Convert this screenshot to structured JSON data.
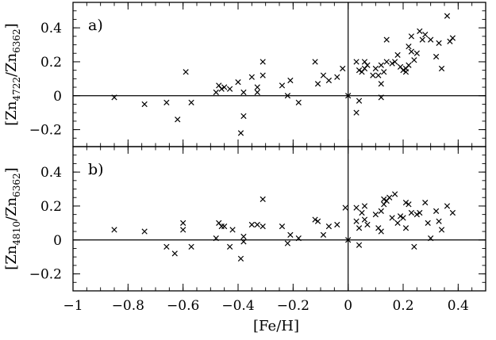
{
  "chart_data": [
    {
      "type": "scatter",
      "panel_label": "a)",
      "title": "",
      "xlabel": "[Fe/H]",
      "ylabel": {
        "pre": "[Zn",
        "sub1": "4722",
        "mid": "/Zn",
        "sub2": "6362",
        "post": "]"
      },
      "xlim": [
        -1.0,
        0.5
      ],
      "ylim": [
        -0.3,
        0.55
      ],
      "xticks": [
        -1,
        -0.8,
        -0.6,
        -0.4,
        -0.2,
        0,
        0.2,
        0.4
      ],
      "xtick_labels": [
        "",
        "",
        "",
        "",
        "",
        "",
        "",
        ""
      ],
      "yticks": [
        -0.2,
        0,
        0.2,
        0.4
      ],
      "ytick_labels": [
        "−0.2",
        "0",
        "0.2",
        "0.4"
      ],
      "marker": "x",
      "reference_lines": {
        "y": 0,
        "x": 0
      },
      "points": [
        [
          -0.85,
          -0.01
        ],
        [
          -0.74,
          -0.05
        ],
        [
          -0.66,
          -0.04
        ],
        [
          -0.62,
          -0.14
        ],
        [
          -0.59,
          0.14
        ],
        [
          -0.57,
          -0.04
        ],
        [
          -0.48,
          0.02
        ],
        [
          -0.47,
          0.06
        ],
        [
          -0.46,
          0.04
        ],
        [
          -0.45,
          0.05
        ],
        [
          -0.43,
          0.04
        ],
        [
          -0.4,
          0.08
        ],
        [
          -0.39,
          -0.22
        ],
        [
          -0.38,
          0.02
        ],
        [
          -0.38,
          -0.12
        ],
        [
          -0.35,
          0.11
        ],
        [
          -0.33,
          0.05
        ],
        [
          -0.33,
          0.02
        ],
        [
          -0.31,
          0.2
        ],
        [
          -0.31,
          0.12
        ],
        [
          -0.24,
          0.06
        ],
        [
          -0.22,
          0.0
        ],
        [
          -0.21,
          0.09
        ],
        [
          -0.18,
          -0.04
        ],
        [
          -0.12,
          0.2
        ],
        [
          -0.11,
          0.07
        ],
        [
          -0.09,
          0.12
        ],
        [
          -0.07,
          0.09
        ],
        [
          -0.04,
          0.11
        ],
        [
          -0.02,
          0.16
        ],
        [
          0.0,
          0.0
        ],
        [
          0.03,
          0.2
        ],
        [
          0.03,
          -0.1
        ],
        [
          0.04,
          0.15
        ],
        [
          0.04,
          -0.03
        ],
        [
          0.05,
          0.14
        ],
        [
          0.06,
          0.2
        ],
        [
          0.06,
          0.16
        ],
        [
          0.07,
          0.18
        ],
        [
          0.09,
          0.12
        ],
        [
          0.1,
          0.16
        ],
        [
          0.11,
          0.12
        ],
        [
          0.12,
          0.18
        ],
        [
          0.12,
          0.07
        ],
        [
          0.12,
          -0.01
        ],
        [
          0.13,
          0.14
        ],
        [
          0.14,
          0.2
        ],
        [
          0.14,
          0.33
        ],
        [
          0.16,
          0.19
        ],
        [
          0.17,
          0.2
        ],
        [
          0.18,
          0.24
        ],
        [
          0.19,
          0.17
        ],
        [
          0.2,
          0.15
        ],
        [
          0.21,
          0.16
        ],
        [
          0.21,
          0.14
        ],
        [
          0.22,
          0.18
        ],
        [
          0.22,
          0.29
        ],
        [
          0.23,
          0.26
        ],
        [
          0.23,
          0.35
        ],
        [
          0.24,
          0.21
        ],
        [
          0.25,
          0.25
        ],
        [
          0.26,
          0.38
        ],
        [
          0.27,
          0.33
        ],
        [
          0.28,
          0.36
        ],
        [
          0.3,
          0.33
        ],
        [
          0.32,
          0.23
        ],
        [
          0.33,
          0.31
        ],
        [
          0.34,
          0.16
        ],
        [
          0.36,
          0.47
        ],
        [
          0.37,
          0.32
        ],
        [
          0.38,
          0.34
        ]
      ]
    },
    {
      "type": "scatter",
      "panel_label": "b)",
      "title": "",
      "xlabel": "[Fe/H]",
      "ylabel": {
        "pre": "[Zn",
        "sub1": "4810",
        "mid": "/Zn",
        "sub2": "6362",
        "post": "]"
      },
      "xlim": [
        -1.0,
        0.5
      ],
      "ylim": [
        -0.3,
        0.55
      ],
      "xticks": [
        -1,
        -0.8,
        -0.6,
        -0.4,
        -0.2,
        0,
        0.2,
        0.4
      ],
      "xtick_labels": [
        "−1",
        "−0.8",
        "−0.6",
        "−0.4",
        "−0.2",
        "0",
        "0.2",
        "0.4"
      ],
      "yticks": [
        -0.2,
        0,
        0.2,
        0.4
      ],
      "ytick_labels": [
        "−0.2",
        "0",
        "0.2",
        "0.4"
      ],
      "marker": "x",
      "reference_lines": {
        "y": 0,
        "x": 0
      },
      "points": [
        [
          -0.85,
          0.06
        ],
        [
          -0.74,
          0.05
        ],
        [
          -0.66,
          -0.04
        ],
        [
          -0.63,
          -0.08
        ],
        [
          -0.6,
          0.1
        ],
        [
          -0.6,
          0.06
        ],
        [
          -0.57,
          -0.04
        ],
        [
          -0.48,
          0.01
        ],
        [
          -0.47,
          0.1
        ],
        [
          -0.46,
          0.08
        ],
        [
          -0.45,
          0.08
        ],
        [
          -0.43,
          -0.04
        ],
        [
          -0.42,
          0.06
        ],
        [
          -0.39,
          -0.11
        ],
        [
          -0.38,
          0.02
        ],
        [
          -0.38,
          -0.01
        ],
        [
          -0.35,
          0.09
        ],
        [
          -0.33,
          0.09
        ],
        [
          -0.31,
          0.24
        ],
        [
          -0.31,
          0.08
        ],
        [
          -0.24,
          0.08
        ],
        [
          -0.22,
          -0.02
        ],
        [
          -0.21,
          0.03
        ],
        [
          -0.18,
          0.01
        ],
        [
          -0.12,
          0.12
        ],
        [
          -0.11,
          0.11
        ],
        [
          -0.09,
          0.03
        ],
        [
          -0.07,
          0.08
        ],
        [
          -0.04,
          0.09
        ],
        [
          -0.01,
          0.19
        ],
        [
          0.0,
          0.0
        ],
        [
          0.03,
          0.19
        ],
        [
          0.03,
          0.11
        ],
        [
          0.04,
          0.07
        ],
        [
          0.04,
          -0.03
        ],
        [
          0.05,
          0.16
        ],
        [
          0.06,
          0.2
        ],
        [
          0.06,
          0.12
        ],
        [
          0.07,
          0.09
        ],
        [
          0.1,
          0.15
        ],
        [
          0.11,
          0.07
        ],
        [
          0.12,
          0.17
        ],
        [
          0.12,
          0.05
        ],
        [
          0.13,
          0.21
        ],
        [
          0.13,
          0.24
        ],
        [
          0.14,
          0.23
        ],
        [
          0.15,
          0.25
        ],
        [
          0.16,
          0.13
        ],
        [
          0.17,
          0.27
        ],
        [
          0.18,
          0.1
        ],
        [
          0.19,
          0.14
        ],
        [
          0.2,
          0.13
        ],
        [
          0.21,
          0.22
        ],
        [
          0.21,
          0.07
        ],
        [
          0.22,
          0.21
        ],
        [
          0.23,
          0.16
        ],
        [
          0.24,
          -0.04
        ],
        [
          0.25,
          0.15
        ],
        [
          0.26,
          0.16
        ],
        [
          0.28,
          0.22
        ],
        [
          0.29,
          0.1
        ],
        [
          0.3,
          0.01
        ],
        [
          0.32,
          0.17
        ],
        [
          0.33,
          0.11
        ],
        [
          0.34,
          0.06
        ],
        [
          0.36,
          0.2
        ],
        [
          0.38,
          0.16
        ]
      ]
    }
  ]
}
